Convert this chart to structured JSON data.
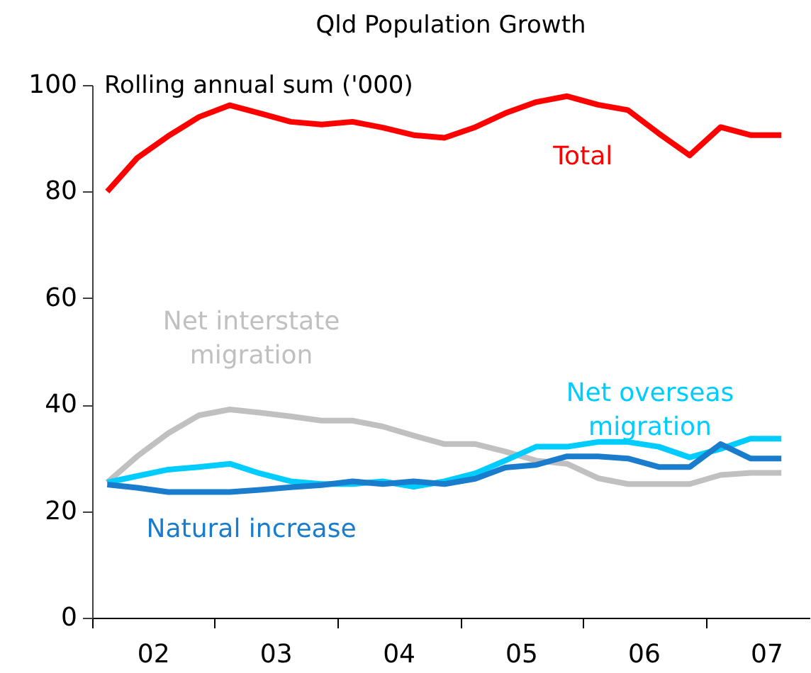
{
  "chart_data": {
    "type": "line",
    "title": "Qld Population Growth",
    "ylabel": "Rolling annual sum ('000)",
    "x": [
      "2002-02-15",
      "2002-05-15",
      "2002-08-15",
      "2002-11-15",
      "2003-02-15",
      "2003-05-15",
      "2003-08-15",
      "2003-11-15",
      "2004-02-15",
      "2004-05-15",
      "2004-08-15",
      "2004-11-15",
      "2005-02-15",
      "2005-05-15",
      "2005-08-15",
      "2005-11-15",
      "2006-02-15",
      "2006-05-15",
      "2006-08-15",
      "2006-11-15",
      "2007-02-15",
      "2007-05-15",
      "2007-08-15"
    ],
    "series": [
      {
        "name": "Total",
        "color": "#ff0000",
        "values": [
          80,
          86.3,
          90.4,
          94,
          96.2,
          94.7,
          93.1,
          92.6,
          93.1,
          92,
          90.6,
          90.1,
          92.1,
          94.7,
          96.8,
          97.9,
          96.3,
          95.3,
          90.9,
          86.8,
          92.1,
          90.6,
          90.6
        ]
      },
      {
        "name": "Net interstate migration",
        "color": "#c0c0c0",
        "values": [
          25.4,
          30.3,
          34.6,
          38,
          39.1,
          38.5,
          37.8,
          37,
          37,
          35.9,
          34.2,
          32.6,
          32.6,
          31.2,
          29.5,
          28.9,
          26.2,
          25.1,
          25.1,
          25.1,
          26.8,
          27.2,
          27.2
        ]
      },
      {
        "name": "Net overseas migration",
        "color": "#00ccff",
        "values": [
          25.4,
          26.6,
          27.8,
          28.3,
          28.9,
          27.1,
          25.6,
          25.1,
          25.1,
          25.6,
          24.6,
          25.6,
          27.1,
          29.5,
          32.1,
          32.1,
          33,
          33,
          32.1,
          30.1,
          31.7,
          33.6,
          33.6
        ]
      },
      {
        "name": "Natural increase",
        "color": "#1a7ccc",
        "values": [
          25,
          24.4,
          23.6,
          23.6,
          23.6,
          24,
          24.5,
          24.9,
          25.6,
          25.1,
          25.6,
          25.1,
          26.1,
          28.2,
          28.7,
          30.3,
          30.3,
          29.9,
          28.3,
          28.3,
          32.6,
          29.9,
          29.9
        ]
      }
    ],
    "xlim": [
      "2002-01-01",
      "2007-11-07"
    ],
    "xticks": [
      {
        "value": "2002-01-01",
        "label": null
      },
      {
        "value": "2002-07-01",
        "label": "02"
      },
      {
        "value": "2003-01-01",
        "label": null
      },
      {
        "value": "2003-07-01",
        "label": "03"
      },
      {
        "value": "2004-01-01",
        "label": null
      },
      {
        "value": "2004-07-01",
        "label": "04"
      },
      {
        "value": "2005-01-01",
        "label": null
      },
      {
        "value": "2005-07-01",
        "label": "05"
      },
      {
        "value": "2006-01-01",
        "label": null
      },
      {
        "value": "2006-07-01",
        "label": "06"
      },
      {
        "value": "2007-01-01",
        "label": null
      },
      {
        "value": "2007-07-01",
        "label": "07"
      }
    ],
    "ylim": [
      0,
      100
    ],
    "yticks": [
      0,
      20,
      40,
      60,
      80,
      100
    ],
    "grid": false,
    "legend": false,
    "marker": "none",
    "line_style": "solid"
  }
}
